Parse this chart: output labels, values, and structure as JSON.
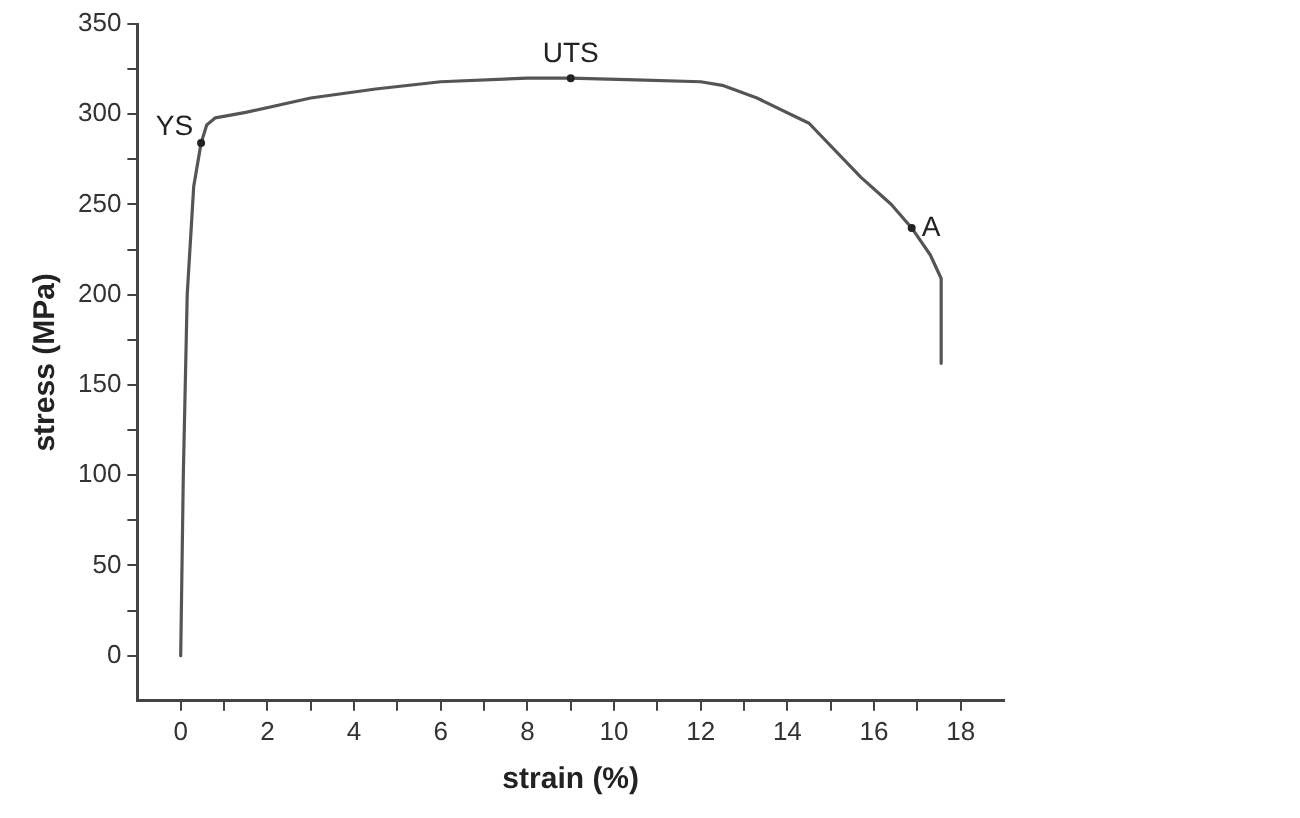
{
  "chart_data": {
    "type": "line",
    "xlabel": "strain (%)",
    "ylabel": "stress (MPa)",
    "x": [
      0,
      0.06,
      0.15,
      0.3,
      0.47,
      0.6,
      0.8,
      1.5,
      3,
      4.5,
      6,
      8,
      9,
      10.5,
      12,
      12.5,
      13.3,
      14.5,
      15.7,
      16.4,
      16.87,
      17.3,
      17.55,
      17.55
    ],
    "series": [
      {
        "color": "#555555",
        "values": [
          0,
          100,
          200,
          260,
          284,
          294,
          298,
          301,
          309,
          314,
          318,
          320,
          320,
          319,
          318,
          316,
          309,
          295,
          265,
          250,
          237,
          222,
          209,
          162
        ]
      }
    ],
    "xlim": [
      -1,
      19
    ],
    "xticks": [
      0,
      {
        "value": 1,
        "label": null
      },
      2,
      {
        "value": 3,
        "label": null
      },
      4,
      {
        "value": 5,
        "label": null
      },
      6,
      {
        "value": 7,
        "label": null
      },
      8,
      {
        "value": 9,
        "label": null
      },
      10,
      {
        "value": 11,
        "label": null
      },
      12,
      {
        "value": 13,
        "label": null
      },
      14,
      {
        "value": 15,
        "label": null
      },
      16,
      {
        "value": 17,
        "label": null
      },
      18
    ],
    "ylim": [
      -25,
      350
    ],
    "yticks": [
      0,
      {
        "value": 25,
        "label": null
      },
      50,
      {
        "value": 75,
        "label": null
      },
      100,
      {
        "value": 125,
        "label": null
      },
      150,
      {
        "value": 175,
        "label": null
      },
      200,
      {
        "value": 225,
        "label": null
      },
      250,
      {
        "value": 275,
        "label": null
      },
      300,
      {
        "value": 325,
        "label": null
      },
      350
    ],
    "annotations": [
      {
        "text": "YS",
        "x": 0.47,
        "y": 284
      },
      {
        "text": "UTS",
        "x": 9,
        "y": 320
      },
      {
        "text": "A",
        "x": 16.87,
        "y": 237
      }
    ],
    "grid": false,
    "legend": false,
    "marker": "none",
    "line_style": "solid"
  }
}
